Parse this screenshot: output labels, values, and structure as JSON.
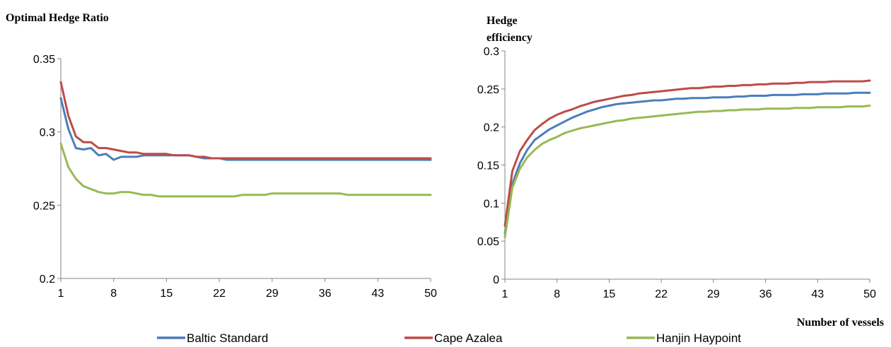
{
  "legend": [
    {
      "name": "Baltic Standard",
      "color": "#4a7ebb"
    },
    {
      "name": "Cape Azalea",
      "color": "#be4b48"
    },
    {
      "name": "Hanjin Haypoint",
      "color": "#98b954"
    }
  ],
  "chart_data": [
    {
      "type": "line",
      "title": "Optimal Hedge Ratio",
      "xlabel": "",
      "ylabel": "",
      "xlim": [
        1,
        50
      ],
      "ylim": [
        0.2,
        0.35
      ],
      "xticks": [
        1,
        8,
        15,
        22,
        29,
        36,
        43,
        50
      ],
      "yticks": [
        "0.2",
        "0.25",
        "0.3",
        "0.35"
      ],
      "grid": false,
      "legend_position": "bottom",
      "x": [
        1,
        2,
        3,
        4,
        5,
        6,
        7,
        8,
        9,
        10,
        11,
        12,
        13,
        14,
        15,
        16,
        17,
        18,
        19,
        20,
        21,
        22,
        23,
        24,
        25,
        26,
        27,
        28,
        29,
        30,
        31,
        32,
        33,
        34,
        35,
        36,
        37,
        38,
        39,
        40,
        41,
        42,
        43,
        44,
        45,
        46,
        47,
        48,
        49,
        50
      ],
      "series": [
        {
          "name": "Baltic Standard",
          "color": "#4a7ebb",
          "values": [
            0.323,
            0.302,
            0.289,
            0.288,
            0.289,
            0.284,
            0.285,
            0.281,
            0.283,
            0.283,
            0.283,
            0.284,
            0.284,
            0.284,
            0.284,
            0.284,
            0.284,
            0.284,
            0.283,
            0.282,
            0.282,
            0.282,
            0.281,
            0.281,
            0.281,
            0.281,
            0.281,
            0.281,
            0.281,
            0.281,
            0.281,
            0.281,
            0.281,
            0.281,
            0.281,
            0.281,
            0.281,
            0.281,
            0.281,
            0.281,
            0.281,
            0.281,
            0.281,
            0.281,
            0.281,
            0.281,
            0.281,
            0.281,
            0.281,
            0.281
          ]
        },
        {
          "name": "Cape Azalea",
          "color": "#be4b48",
          "values": [
            0.334,
            0.311,
            0.297,
            0.293,
            0.293,
            0.289,
            0.289,
            0.288,
            0.287,
            0.286,
            0.286,
            0.285,
            0.285,
            0.285,
            0.285,
            0.284,
            0.284,
            0.284,
            0.283,
            0.283,
            0.282,
            0.282,
            0.282,
            0.282,
            0.282,
            0.282,
            0.282,
            0.282,
            0.282,
            0.282,
            0.282,
            0.282,
            0.282,
            0.282,
            0.282,
            0.282,
            0.282,
            0.282,
            0.282,
            0.282,
            0.282,
            0.282,
            0.282,
            0.282,
            0.282,
            0.282,
            0.282,
            0.282,
            0.282,
            0.282
          ]
        },
        {
          "name": "Hanjin Haypoint",
          "color": "#98b954",
          "values": [
            0.292,
            0.276,
            0.268,
            0.263,
            0.261,
            0.259,
            0.258,
            0.258,
            0.259,
            0.259,
            0.258,
            0.257,
            0.257,
            0.256,
            0.256,
            0.256,
            0.256,
            0.256,
            0.256,
            0.256,
            0.256,
            0.256,
            0.256,
            0.256,
            0.257,
            0.257,
            0.257,
            0.257,
            0.258,
            0.258,
            0.258,
            0.258,
            0.258,
            0.258,
            0.258,
            0.258,
            0.258,
            0.258,
            0.257,
            0.257,
            0.257,
            0.257,
            0.257,
            0.257,
            0.257,
            0.257,
            0.257,
            0.257,
            0.257,
            0.257
          ]
        }
      ]
    },
    {
      "type": "line",
      "title": "",
      "xlabel": "Number of vessels",
      "ylabel": "Hedge efficiency",
      "xlim": [
        1,
        50
      ],
      "ylim": [
        0,
        0.3
      ],
      "xticks": [
        1,
        8,
        15,
        22,
        29,
        36,
        43,
        50
      ],
      "yticks": [
        "0",
        "0.05",
        "0.1",
        "0.15",
        "0.2",
        "0.25",
        "0.3"
      ],
      "grid": false,
      "legend_position": "bottom",
      "x": [
        1,
        2,
        3,
        4,
        5,
        6,
        7,
        8,
        9,
        10,
        11,
        12,
        13,
        14,
        15,
        16,
        17,
        18,
        19,
        20,
        21,
        22,
        23,
        24,
        25,
        26,
        27,
        28,
        29,
        30,
        31,
        32,
        33,
        34,
        35,
        36,
        37,
        38,
        39,
        40,
        41,
        42,
        43,
        44,
        45,
        46,
        47,
        48,
        49,
        50
      ],
      "series": [
        {
          "name": "Baltic Standard",
          "color": "#4a7ebb",
          "values": [
            0.06,
            0.125,
            0.152,
            0.17,
            0.183,
            0.19,
            0.197,
            0.202,
            0.207,
            0.212,
            0.216,
            0.22,
            0.223,
            0.226,
            0.228,
            0.23,
            0.231,
            0.232,
            0.233,
            0.234,
            0.235,
            0.235,
            0.236,
            0.237,
            0.237,
            0.238,
            0.238,
            0.238,
            0.239,
            0.239,
            0.239,
            0.24,
            0.24,
            0.241,
            0.241,
            0.241,
            0.242,
            0.242,
            0.242,
            0.242,
            0.243,
            0.243,
            0.243,
            0.244,
            0.244,
            0.244,
            0.244,
            0.245,
            0.245,
            0.245
          ]
        },
        {
          "name": "Cape Azalea",
          "color": "#be4b48",
          "values": [
            0.07,
            0.142,
            0.168,
            0.183,
            0.196,
            0.204,
            0.211,
            0.216,
            0.22,
            0.223,
            0.227,
            0.23,
            0.233,
            0.235,
            0.237,
            0.239,
            0.241,
            0.242,
            0.244,
            0.245,
            0.246,
            0.247,
            0.248,
            0.249,
            0.25,
            0.251,
            0.251,
            0.252,
            0.253,
            0.253,
            0.254,
            0.254,
            0.255,
            0.255,
            0.256,
            0.256,
            0.257,
            0.257,
            0.257,
            0.258,
            0.258,
            0.259,
            0.259,
            0.259,
            0.26,
            0.26,
            0.26,
            0.26,
            0.26,
            0.261
          ]
        },
        {
          "name": "Hanjin Haypoint",
          "color": "#98b954",
          "values": [
            0.055,
            0.12,
            0.145,
            0.16,
            0.17,
            0.178,
            0.183,
            0.187,
            0.192,
            0.195,
            0.198,
            0.2,
            0.202,
            0.204,
            0.206,
            0.208,
            0.209,
            0.211,
            0.212,
            0.213,
            0.214,
            0.215,
            0.216,
            0.217,
            0.218,
            0.219,
            0.22,
            0.22,
            0.221,
            0.221,
            0.222,
            0.222,
            0.223,
            0.223,
            0.223,
            0.224,
            0.224,
            0.224,
            0.224,
            0.225,
            0.225,
            0.225,
            0.226,
            0.226,
            0.226,
            0.226,
            0.227,
            0.227,
            0.227,
            0.228
          ]
        }
      ]
    }
  ]
}
